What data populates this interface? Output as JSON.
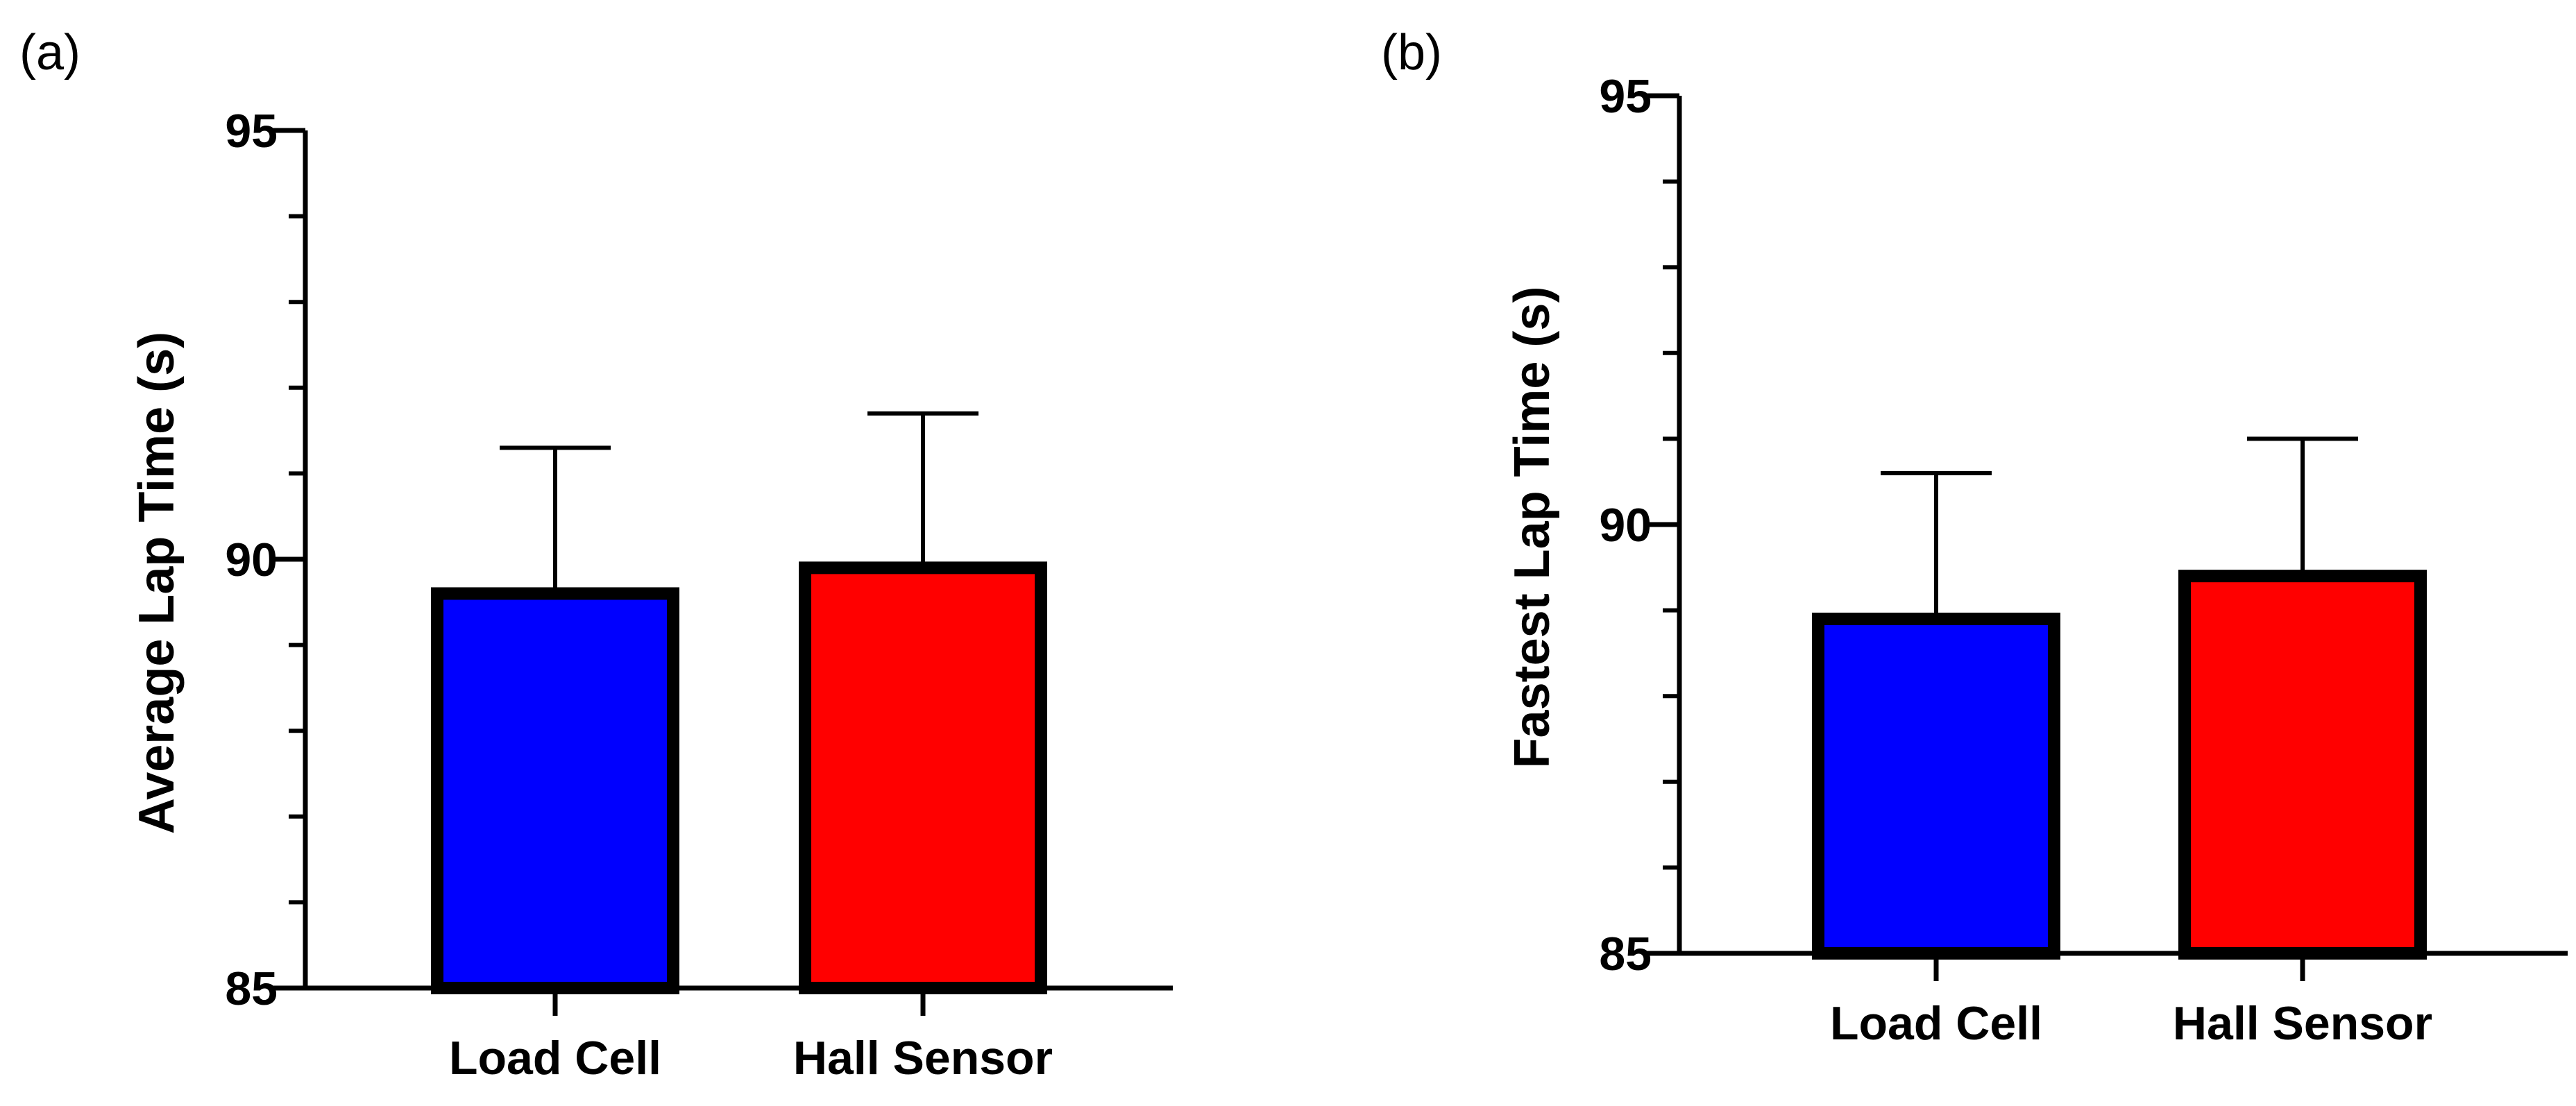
{
  "chart_data": [
    {
      "type": "bar",
      "panel_label": "(a)",
      "title": "",
      "xlabel": "",
      "ylabel": "Average Lap Time (s)",
      "categories": [
        "Load Cell",
        "Hall Sensor"
      ],
      "values": [
        89.6,
        89.9
      ],
      "error_upper": [
        91.3,
        91.7
      ],
      "colors": [
        "#0000ff",
        "#ff0000"
      ],
      "ylim": [
        85,
        95
      ],
      "yticks": [
        85,
        90,
        95
      ],
      "ytick_labels": [
        "85",
        "90",
        "95"
      ],
      "minor_yticks": [
        86,
        87,
        88,
        89,
        91,
        92,
        93,
        94
      ],
      "grid": false
    },
    {
      "type": "bar",
      "panel_label": "(b)",
      "title": "",
      "xlabel": "",
      "ylabel": "Fastest Lap Time (s)",
      "categories": [
        "Load Cell",
        "Hall Sensor"
      ],
      "values": [
        88.9,
        89.4
      ],
      "error_upper": [
        90.6,
        91.0
      ],
      "colors": [
        "#0000ff",
        "#ff0000"
      ],
      "ylim": [
        85,
        95
      ],
      "yticks": [
        85,
        90,
        95
      ],
      "ytick_labels": [
        "85",
        "90",
        "95"
      ],
      "minor_yticks": [
        86,
        87,
        88,
        89,
        91,
        92,
        93,
        94
      ],
      "grid": false
    }
  ]
}
